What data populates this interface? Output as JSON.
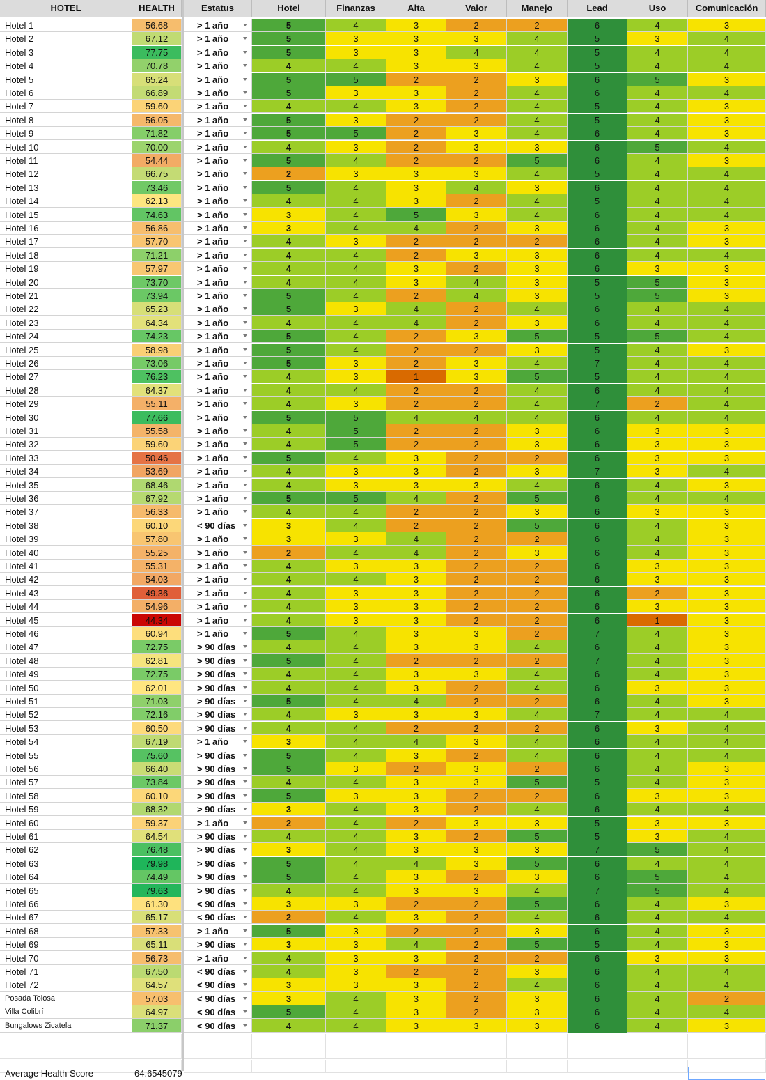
{
  "headers": [
    "HOTEL",
    "HEALTH",
    "Estatus",
    "Hotel",
    "Finanzas",
    "Alta",
    "Valor",
    "Manejo",
    "Lead",
    "Uso",
    "Comunicación"
  ],
  "status_labels": {
    "a": "> 1 año",
    "b": "< 90 días",
    "c": "> 90 días"
  },
  "rows": [
    [
      "Hotel 1",
      "56.68",
      "a",
      5,
      4,
      3,
      2,
      2,
      6,
      4,
      3
    ],
    [
      "Hotel 2",
      "67.12",
      "a",
      5,
      3,
      3,
      3,
      4,
      5,
      3,
      4
    ],
    [
      "Hotel 3",
      "77.75",
      "a",
      5,
      3,
      3,
      4,
      4,
      5,
      4,
      4
    ],
    [
      "Hotel 4",
      "70.78",
      "a",
      4,
      4,
      3,
      3,
      4,
      5,
      4,
      4
    ],
    [
      "Hotel 5",
      "65.24",
      "a",
      5,
      5,
      2,
      2,
      3,
      6,
      5,
      3
    ],
    [
      "Hotel 6",
      "66.89",
      "a",
      5,
      3,
      3,
      2,
      4,
      6,
      4,
      4
    ],
    [
      "Hotel 7",
      "59.60",
      "a",
      4,
      4,
      3,
      2,
      4,
      5,
      4,
      3
    ],
    [
      "Hotel 8",
      "56.05",
      "a",
      5,
      3,
      2,
      2,
      4,
      5,
      4,
      3
    ],
    [
      "Hotel 9",
      "71.82",
      "a",
      5,
      5,
      2,
      3,
      4,
      6,
      4,
      3
    ],
    [
      "Hotel 10",
      "70.00",
      "a",
      4,
      3,
      2,
      3,
      3,
      6,
      5,
      4
    ],
    [
      "Hotel 11",
      "54.44",
      "a",
      5,
      4,
      2,
      2,
      5,
      6,
      4,
      3
    ],
    [
      "Hotel 12",
      "66.75",
      "a",
      2,
      3,
      3,
      3,
      4,
      5,
      4,
      4
    ],
    [
      "Hotel 13",
      "73.46",
      "a",
      5,
      4,
      3,
      4,
      3,
      6,
      4,
      4
    ],
    [
      "Hotel 14",
      "62.13",
      "a",
      4,
      4,
      3,
      2,
      4,
      5,
      4,
      4
    ],
    [
      "Hotel 15",
      "74.63",
      "a",
      3,
      4,
      5,
      3,
      4,
      6,
      4,
      4
    ],
    [
      "Hotel 16",
      "56.86",
      "a",
      3,
      4,
      4,
      2,
      3,
      6,
      4,
      3
    ],
    [
      "Hotel 17",
      "57.70",
      "a",
      4,
      3,
      2,
      2,
      2,
      6,
      4,
      3
    ],
    [
      "Hotel 18",
      "71.21",
      "a",
      4,
      4,
      2,
      3,
      3,
      6,
      4,
      4
    ],
    [
      "Hotel 19",
      "57.97",
      "a",
      4,
      4,
      3,
      2,
      3,
      6,
      3,
      3
    ],
    [
      "Hotel 20",
      "73.70",
      "a",
      4,
      4,
      3,
      4,
      3,
      5,
      5,
      3
    ],
    [
      "Hotel 21",
      "73.94",
      "a",
      5,
      4,
      2,
      4,
      3,
      5,
      5,
      3
    ],
    [
      "Hotel 22",
      "65.23",
      "a",
      5,
      3,
      4,
      2,
      4,
      6,
      4,
      4
    ],
    [
      "Hotel 23",
      "64.34",
      "a",
      4,
      4,
      4,
      2,
      3,
      6,
      4,
      4
    ],
    [
      "Hotel 24",
      "74.23",
      "a",
      5,
      4,
      2,
      3,
      5,
      5,
      5,
      4
    ],
    [
      "Hotel 25",
      "58.98",
      "a",
      5,
      4,
      2,
      2,
      3,
      5,
      4,
      3
    ],
    [
      "Hotel 26",
      "73.06",
      "a",
      5,
      3,
      2,
      3,
      4,
      7,
      4,
      4
    ],
    [
      "Hotel 27",
      "76.23",
      "a",
      4,
      3,
      1,
      3,
      5,
      5,
      4,
      4
    ],
    [
      "Hotel 28",
      "64.37",
      "a",
      4,
      4,
      2,
      2,
      4,
      6,
      4,
      4
    ],
    [
      "Hotel 29",
      "55.11",
      "a",
      4,
      3,
      2,
      2,
      4,
      7,
      2,
      4
    ],
    [
      "Hotel 30",
      "77.66",
      "a",
      5,
      5,
      4,
      4,
      4,
      6,
      4,
      4
    ],
    [
      "Hotel 31",
      "55.58",
      "a",
      4,
      5,
      2,
      2,
      3,
      6,
      3,
      3
    ],
    [
      "Hotel 32",
      "59.60",
      "a",
      4,
      5,
      2,
      2,
      3,
      6,
      3,
      3
    ],
    [
      "Hotel 33",
      "50.46",
      "a",
      5,
      4,
      3,
      2,
      2,
      6,
      3,
      3
    ],
    [
      "Hotel 34",
      "53.69",
      "a",
      4,
      3,
      3,
      2,
      3,
      7,
      3,
      4
    ],
    [
      "Hotel 35",
      "68.46",
      "a",
      4,
      3,
      3,
      3,
      4,
      6,
      4,
      3
    ],
    [
      "Hotel 36",
      "67.92",
      "a",
      5,
      5,
      4,
      2,
      5,
      6,
      4,
      4
    ],
    [
      "Hotel 37",
      "56.33",
      "a",
      4,
      4,
      2,
      2,
      3,
      6,
      3,
      3
    ],
    [
      "Hotel 38",
      "60.10",
      "b",
      3,
      4,
      2,
      2,
      5,
      6,
      4,
      3
    ],
    [
      "Hotel 39",
      "57.80",
      "a",
      3,
      3,
      4,
      2,
      2,
      6,
      4,
      3
    ],
    [
      "Hotel 40",
      "55.25",
      "a",
      2,
      4,
      4,
      2,
      3,
      6,
      4,
      3
    ],
    [
      "Hotel 41",
      "55.31",
      "a",
      4,
      3,
      3,
      2,
      2,
      6,
      3,
      3
    ],
    [
      "Hotel 42",
      "54.03",
      "a",
      4,
      4,
      3,
      2,
      2,
      6,
      3,
      3
    ],
    [
      "Hotel 43",
      "49.36",
      "a",
      4,
      3,
      3,
      2,
      2,
      6,
      2,
      3
    ],
    [
      "Hotel 44",
      "54.96",
      "a",
      4,
      3,
      3,
      2,
      2,
      6,
      3,
      3
    ],
    [
      "Hotel 45",
      "44.34",
      "a",
      4,
      3,
      3,
      2,
      2,
      6,
      1,
      3
    ],
    [
      "Hotel 46",
      "60.94",
      "a",
      5,
      4,
      3,
      3,
      2,
      7,
      4,
      3
    ],
    [
      "Hotel 47",
      "72.75",
      "c",
      4,
      4,
      3,
      3,
      4,
      6,
      4,
      3
    ],
    [
      "Hotel 48",
      "62.81",
      "c",
      5,
      4,
      2,
      2,
      2,
      7,
      4,
      3
    ],
    [
      "Hotel 49",
      "72.75",
      "c",
      4,
      4,
      3,
      3,
      4,
      6,
      4,
      3
    ],
    [
      "Hotel 50",
      "62.01",
      "c",
      4,
      4,
      3,
      2,
      4,
      6,
      3,
      3
    ],
    [
      "Hotel 51",
      "71.03",
      "c",
      5,
      4,
      4,
      2,
      2,
      6,
      4,
      3
    ],
    [
      "Hotel 52",
      "72.16",
      "c",
      4,
      3,
      3,
      3,
      4,
      7,
      4,
      4
    ],
    [
      "Hotel 53",
      "60.50",
      "c",
      4,
      4,
      2,
      2,
      2,
      6,
      3,
      4
    ],
    [
      "Hotel 54",
      "67.19",
      "a",
      3,
      4,
      4,
      3,
      4,
      6,
      4,
      4
    ],
    [
      "Hotel 55",
      "75.60",
      "c",
      5,
      4,
      3,
      2,
      4,
      6,
      4,
      4
    ],
    [
      "Hotel 56",
      "66.40",
      "c",
      5,
      3,
      2,
      3,
      2,
      6,
      4,
      3
    ],
    [
      "Hotel 57",
      "73.84",
      "c",
      4,
      4,
      3,
      3,
      5,
      5,
      4,
      3
    ],
    [
      "Hotel 58",
      "60.10",
      "c",
      5,
      3,
      3,
      2,
      2,
      6,
      3,
      3
    ],
    [
      "Hotel 59",
      "68.32",
      "c",
      3,
      4,
      3,
      2,
      4,
      6,
      4,
      4
    ],
    [
      "Hotel 60",
      "59.37",
      "a",
      2,
      4,
      2,
      3,
      3,
      5,
      3,
      3
    ],
    [
      "Hotel 61",
      "64.54",
      "c",
      4,
      4,
      3,
      2,
      5,
      5,
      3,
      4
    ],
    [
      "Hotel 62",
      "76.48",
      "c",
      3,
      4,
      3,
      3,
      3,
      7,
      5,
      4
    ],
    [
      "Hotel 63",
      "79.98",
      "c",
      5,
      4,
      4,
      3,
      5,
      6,
      4,
      4
    ],
    [
      "Hotel 64",
      "74.49",
      "c",
      5,
      4,
      3,
      2,
      3,
      6,
      5,
      4
    ],
    [
      "Hotel 65",
      "79.63",
      "c",
      4,
      4,
      3,
      3,
      4,
      7,
      5,
      4
    ],
    [
      "Hotel 66",
      "61.30",
      "b",
      3,
      3,
      2,
      2,
      5,
      6,
      4,
      3
    ],
    [
      "Hotel 67",
      "65.17",
      "b",
      2,
      4,
      3,
      2,
      4,
      6,
      4,
      4
    ],
    [
      "Hotel 68",
      "57.33",
      "a",
      5,
      3,
      2,
      2,
      3,
      6,
      4,
      3
    ],
    [
      "Hotel 69",
      "65.11",
      "c",
      3,
      3,
      4,
      2,
      5,
      5,
      4,
      3
    ],
    [
      "Hotel 70",
      "56.73",
      "a",
      4,
      3,
      3,
      2,
      2,
      6,
      3,
      3
    ],
    [
      "Hotel 71",
      "67.50",
      "b",
      4,
      3,
      2,
      2,
      3,
      6,
      4,
      4
    ],
    [
      "Hotel 72",
      "64.57",
      "b",
      3,
      3,
      3,
      2,
      4,
      6,
      4,
      4
    ],
    [
      "Posada Tolosa",
      "57.03",
      "b",
      3,
      4,
      3,
      2,
      3,
      6,
      4,
      2
    ],
    [
      "Villa Colibrí",
      "64.97",
      "b",
      5,
      4,
      3,
      2,
      3,
      6,
      4,
      4
    ],
    [
      "Bungalows Zicatela",
      "71.37",
      "b",
      4,
      4,
      3,
      3,
      3,
      6,
      4,
      3
    ]
  ],
  "footer": {
    "label": "Average Health Score",
    "value": "64.6545079"
  },
  "colors": {
    "score_1": "#d96a00",
    "score_2": "#eca01f",
    "score_3": "#f7e300",
    "score_4": "#9ccd27",
    "score_5": "#4ea83a",
    "score_6": "#2f8f3a",
    "score_7": "#2f8f3a",
    "health_low": "#c80000",
    "health_mid": "#ffe680",
    "health_high": "#1fb55a"
  }
}
